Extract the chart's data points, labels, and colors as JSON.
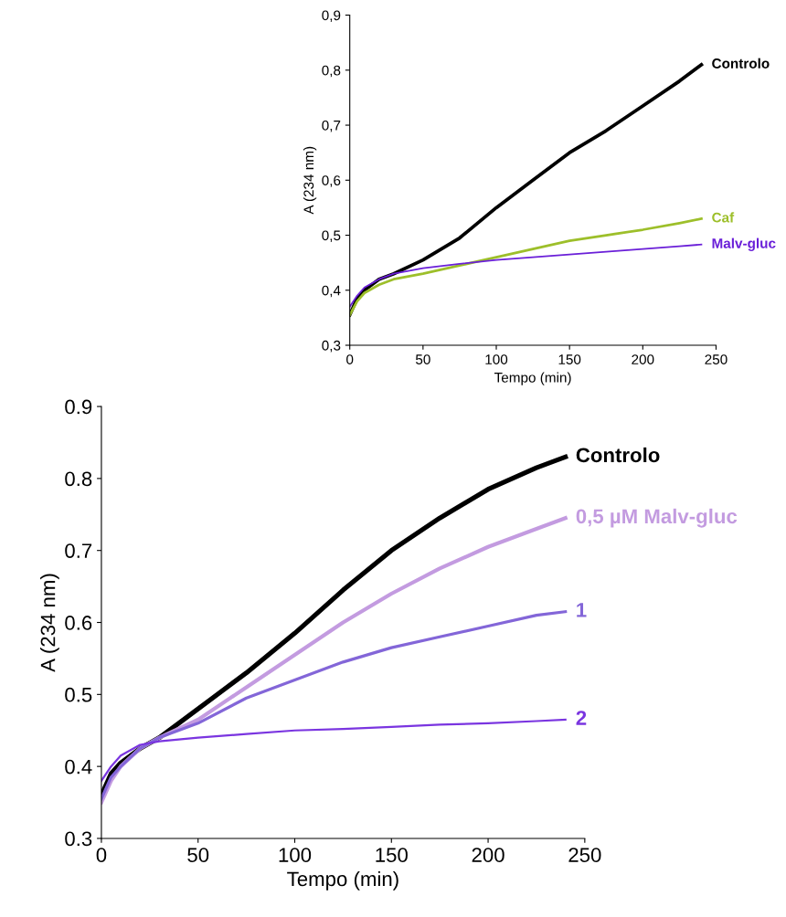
{
  "chart_data": [
    {
      "type": "line",
      "xlabel": "Tempo (min)",
      "ylabel": "A (234 nm)",
      "xlim": [
        0,
        250
      ],
      "ylim": [
        0.3,
        0.9
      ],
      "xticks": [
        0,
        50,
        100,
        150,
        200,
        250
      ],
      "yticks": [
        {
          "value": 0.3,
          "label": "0,3"
        },
        {
          "value": 0.4,
          "label": "0,4"
        },
        {
          "value": 0.5,
          "label": "0,5"
        },
        {
          "value": 0.6,
          "label": "0,6"
        },
        {
          "value": 0.7,
          "label": "0,7"
        },
        {
          "value": 0.8,
          "label": "0,8"
        },
        {
          "value": 0.9,
          "label": "0,9"
        }
      ],
      "grid": false,
      "legend": false,
      "x": [
        0,
        5,
        10,
        20,
        30,
        50,
        75,
        100,
        125,
        150,
        175,
        200,
        225,
        240
      ],
      "series": [
        {
          "name": "Controlo",
          "color": "#000000",
          "values": [
            0.355,
            0.385,
            0.4,
            0.42,
            0.43,
            0.455,
            0.495,
            0.55,
            0.6,
            0.65,
            0.69,
            0.735,
            0.78,
            0.81
          ]
        },
        {
          "name": "Caf",
          "color": "#9dbf2a",
          "values": [
            0.355,
            0.38,
            0.395,
            0.41,
            0.42,
            0.43,
            0.445,
            0.46,
            0.475,
            0.49,
            0.5,
            0.51,
            0.522,
            0.53
          ]
        },
        {
          "name": "Malv-gluc",
          "color": "#6a1fd8",
          "values": [
            0.37,
            0.39,
            0.405,
            0.42,
            0.43,
            0.44,
            0.448,
            0.455,
            0.46,
            0.465,
            0.47,
            0.475,
            0.48,
            0.483
          ]
        }
      ]
    },
    {
      "type": "line",
      "xlabel": "Tempo (min)",
      "ylabel": "A (234 nm)",
      "xlim": [
        0,
        250
      ],
      "ylim": [
        0.3,
        0.9
      ],
      "xticks": [
        0,
        50,
        100,
        150,
        200,
        250
      ],
      "yticks": [
        0.3,
        0.4,
        0.5,
        0.6,
        0.7,
        0.8,
        0.9
      ],
      "grid": false,
      "legend": false,
      "x": [
        0,
        5,
        10,
        20,
        30,
        50,
        75,
        100,
        125,
        150,
        175,
        200,
        225,
        240
      ],
      "series": [
        {
          "name": "Controlo",
          "color": "#000000",
          "values": [
            0.36,
            0.39,
            0.405,
            0.425,
            0.44,
            0.48,
            0.53,
            0.585,
            0.645,
            0.7,
            0.745,
            0.785,
            0.815,
            0.83
          ]
        },
        {
          "name": "0,5 µM Malv-gluc",
          "color": "#c39be0",
          "values": [
            0.35,
            0.38,
            0.4,
            0.425,
            0.44,
            0.465,
            0.51,
            0.555,
            0.6,
            0.64,
            0.675,
            0.705,
            0.73,
            0.745
          ]
        },
        {
          "name": "1",
          "color": "#8366d8",
          "values": [
            0.355,
            0.385,
            0.4,
            0.425,
            0.44,
            0.46,
            0.495,
            0.52,
            0.545,
            0.565,
            0.58,
            0.595,
            0.61,
            0.615
          ]
        },
        {
          "name": "2",
          "color": "#7a35e0",
          "values": [
            0.38,
            0.4,
            0.415,
            0.43,
            0.435,
            0.44,
            0.445,
            0.45,
            0.452,
            0.455,
            0.458,
            0.46,
            0.463,
            0.465
          ]
        }
      ]
    }
  ]
}
